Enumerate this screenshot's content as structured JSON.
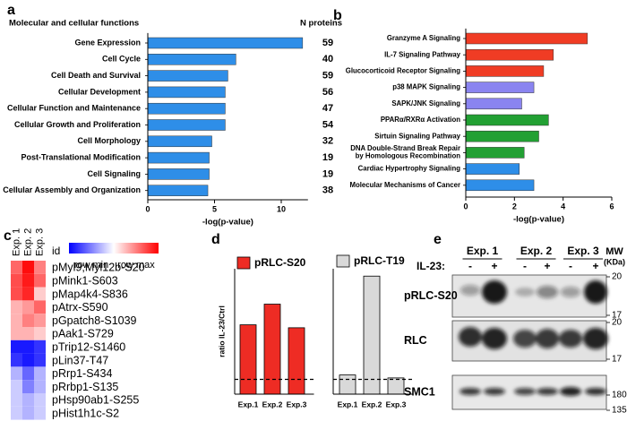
{
  "panel_labels": [
    "a",
    "b",
    "c",
    "d",
    "e"
  ],
  "chart_data": [
    {
      "type": "hbar",
      "header": "Molecular and cellular functions",
      "count_header": "N proteins",
      "categories": [
        "Gene Expression",
        "Cell Cycle",
        "Cell Death and Survival",
        "Cellular Development",
        "Cellular Function and Maintenance",
        "Cellular Growth and Proliferation",
        "Cell Morphology",
        "Post-Translational Modification",
        "Cell Signaling",
        "Cellular Assembly and Organization"
      ],
      "values": [
        11.6,
        6.6,
        6.0,
        5.8,
        5.8,
        5.8,
        4.8,
        4.6,
        4.6,
        4.5
      ],
      "counts": [
        59,
        40,
        59,
        56,
        47,
        54,
        32,
        19,
        19,
        38
      ],
      "color": "#2e8ee8",
      "xlabel": "-log(p-value)",
      "xlim": [
        0,
        12
      ],
      "xticks": [
        0,
        5,
        10
      ]
    },
    {
      "type": "hbar",
      "categories": [
        "Granzyme A Signaling",
        "IL-7 Signaling Pathway",
        "Glucocorticoid Receptor Signaling",
        "p38 MAPK Signaling",
        "SAPK/JNK Signaling",
        "PPARα/RXRα Activation",
        "Sirtuin Signaling Pathway",
        "DNA Double-Strand Break Repair\nby Homologous Recombination",
        "Cardiac Hypertrophy Signaling",
        "Molecular Mechanisms of Cancer"
      ],
      "values": [
        5.0,
        3.6,
        3.2,
        2.8,
        2.3,
        3.4,
        3.0,
        2.4,
        2.2,
        2.8
      ],
      "colors": [
        "#f03c24",
        "#f03c24",
        "#f03c24",
        "#8a84f0",
        "#8a84f0",
        "#22a033",
        "#22a033",
        "#22a033",
        "#2e8ee8",
        "#2e8ee8"
      ],
      "xlabel": "-log(p-value)",
      "xlim": [
        0,
        6
      ],
      "xticks": [
        0,
        2,
        4,
        6
      ]
    },
    {
      "type": "heatmap",
      "columns": [
        "Exp. 1",
        "Exp. 2",
        "Exp. 3"
      ],
      "row_header": "id",
      "rows": [
        "pMyl9;Myl12b-S20",
        "pMink1-S603",
        "pMap4k4-S836",
        "pAtrx-S590",
        "pGpatch8-S1039",
        "pAak1-S729",
        "pTrip12-S1460",
        "pLin37-T47",
        "pRrp1-S434",
        "pRrbp1-S135",
        "pHsp90ab1-S255",
        "pHist1h1c-S2"
      ],
      "values": [
        [
          0.6,
          0.95,
          0.5
        ],
        [
          0.7,
          0.9,
          0.6
        ],
        [
          0.7,
          0.85,
          0.2
        ],
        [
          0.3,
          0.4,
          0.6
        ],
        [
          0.3,
          0.5,
          0.4
        ],
        [
          0.3,
          0.3,
          0.2
        ],
        [
          -0.9,
          -0.9,
          -0.8
        ],
        [
          -0.8,
          -0.9,
          -0.8
        ],
        [
          -0.3,
          -0.6,
          -0.3
        ],
        [
          -0.2,
          -0.5,
          -0.3
        ],
        [
          -0.2,
          -0.3,
          -0.2
        ],
        [
          -0.2,
          -0.3,
          -0.2
        ]
      ],
      "clim": [
        -1,
        1
      ],
      "colors": [
        "#0000ff",
        "#ffffff",
        "#ff0000"
      ],
      "colorbar_labels": [
        "row min",
        "row max"
      ]
    },
    {
      "type": "bar",
      "ylabel": "ratio IL-23/Ctrl",
      "categories": [
        "Exp.1",
        "Exp.2",
        "Exp.3"
      ],
      "series": [
        {
          "name": "pRLC-S20",
          "color": "#ee2c24",
          "values": [
            4.7,
            6.1,
            4.5
          ]
        }
      ],
      "ylim": [
        0,
        8.5
      ],
      "reference_line": 1
    },
    {
      "type": "bar",
      "categories": [
        "Exp.1",
        "Exp.2",
        "Exp.3"
      ],
      "series": [
        {
          "name": "pRLC-T19",
          "color": "#d9d9d9",
          "values": [
            1.3,
            8.0,
            1.1
          ]
        }
      ],
      "ylim": [
        0,
        8.5
      ],
      "reference_line": 1
    }
  ],
  "blot": {
    "groups": [
      "Exp. 1",
      "Exp. 2",
      "Exp. 3"
    ],
    "treatment_label": "IL-23:",
    "lanes": [
      "-",
      "+",
      "-",
      "+",
      "-",
      "+"
    ],
    "rows": [
      {
        "label": "pRLC-S20",
        "markers": [
          20,
          17
        ]
      },
      {
        "label": "RLC",
        "markers": [
          20,
          17
        ]
      },
      {
        "label": "SMC1",
        "markers": [
          180,
          135
        ]
      }
    ],
    "mw_label": [
      "MW",
      "(KDa)"
    ]
  }
}
